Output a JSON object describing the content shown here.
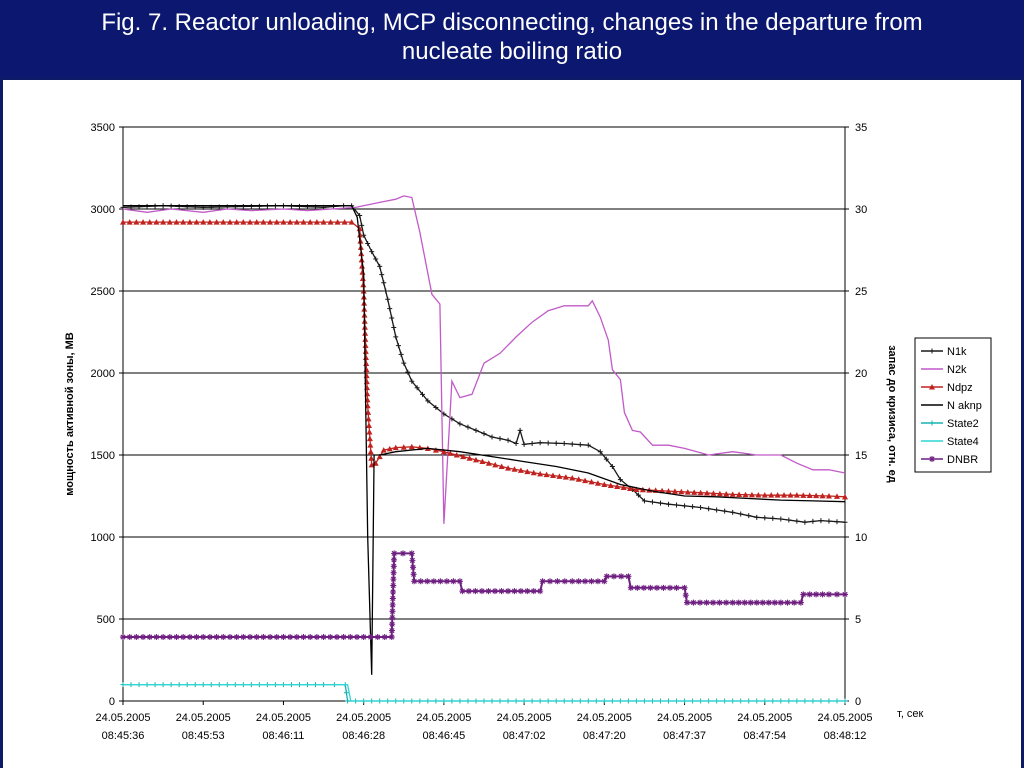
{
  "slide": {
    "title": "Fig. 7. Reactor unloading, MCP disconnecting, changes in the departure from nucleate boiling ratio"
  },
  "chart_data": {
    "type": "line",
    "title": "",
    "xlabel": "т, сек",
    "ylabel_left": "мощность активной зоны, МВ",
    "ylabel_right": "запас до кризиса, отн. ед",
    "x_ticks": [
      [
        "24.05.2005",
        "08:45:36"
      ],
      [
        "24.05.2005",
        "08:45:53"
      ],
      [
        "24.05.2005",
        "08:46:11"
      ],
      [
        "24.05.2005",
        "08:46:28"
      ],
      [
        "24.05.2005",
        "08:46:45"
      ],
      [
        "24.05.2005",
        "08:47:02"
      ],
      [
        "24.05.2005",
        "08:47:20"
      ],
      [
        "24.05.2005",
        "08:47:37"
      ],
      [
        "24.05.2005",
        "08:47:54"
      ],
      [
        "24.05.2005",
        "08:48:12"
      ]
    ],
    "ylim_left": [
      0,
      3500
    ],
    "yticks_left": [
      "0",
      "500",
      "1000",
      "1500",
      "2000",
      "2500",
      "3000",
      "3500"
    ],
    "ylim_right": [
      0,
      35
    ],
    "yticks_right": [
      "0",
      "5",
      "10",
      "15",
      "20",
      "25",
      "30",
      "35"
    ],
    "grid": "horizontal",
    "legend_position": "right",
    "series": [
      {
        "name": "N1k",
        "axis": "left",
        "color": "#1a1a1a",
        "marker": "plus",
        "points": [
          [
            0,
            3010
          ],
          [
            0.5,
            3020
          ],
          [
            1,
            3010
          ],
          [
            1.5,
            3015
          ],
          [
            2,
            3020
          ],
          [
            2.5,
            3010
          ],
          [
            2.75,
            3020
          ],
          [
            2.85,
            3020
          ],
          [
            2.95,
            2960
          ],
          [
            3.0,
            2840
          ],
          [
            3.1,
            2740
          ],
          [
            3.2,
            2650
          ],
          [
            3.3,
            2450
          ],
          [
            3.4,
            2220
          ],
          [
            3.5,
            2060
          ],
          [
            3.6,
            1950
          ],
          [
            3.8,
            1830
          ],
          [
            4.0,
            1750
          ],
          [
            4.2,
            1690
          ],
          [
            4.4,
            1650
          ],
          [
            4.6,
            1610
          ],
          [
            4.8,
            1590
          ],
          [
            4.9,
            1570
          ],
          [
            4.95,
            1650
          ],
          [
            5.0,
            1565
          ],
          [
            5.2,
            1575
          ],
          [
            5.5,
            1570
          ],
          [
            5.8,
            1560
          ],
          [
            5.95,
            1520
          ],
          [
            6.1,
            1430
          ],
          [
            6.2,
            1350
          ],
          [
            6.35,
            1290
          ],
          [
            6.5,
            1220
          ],
          [
            6.8,
            1200
          ],
          [
            7.2,
            1180
          ],
          [
            7.6,
            1150
          ],
          [
            7.9,
            1120
          ],
          [
            8.2,
            1110
          ],
          [
            8.5,
            1090
          ],
          [
            8.7,
            1100
          ],
          [
            9.0,
            1090
          ]
        ]
      },
      {
        "name": "N2k",
        "axis": "left",
        "color": "#c15ac8",
        "marker": "none",
        "points": [
          [
            0,
            3000
          ],
          [
            0.3,
            2980
          ],
          [
            0.6,
            3000
          ],
          [
            1,
            2980
          ],
          [
            1.3,
            3000
          ],
          [
            1.6,
            2990
          ],
          [
            2,
            3000
          ],
          [
            2.3,
            2990
          ],
          [
            2.6,
            3000
          ],
          [
            2.9,
            3010
          ],
          [
            3.2,
            3040
          ],
          [
            3.4,
            3060
          ],
          [
            3.5,
            3080
          ],
          [
            3.6,
            3070
          ],
          [
            3.7,
            2860
          ],
          [
            3.85,
            2480
          ],
          [
            3.95,
            2420
          ],
          [
            4.0,
            1080
          ],
          [
            4.1,
            1950
          ],
          [
            4.2,
            1850
          ],
          [
            4.35,
            1870
          ],
          [
            4.5,
            2060
          ],
          [
            4.7,
            2120
          ],
          [
            4.9,
            2220
          ],
          [
            5.1,
            2310
          ],
          [
            5.3,
            2380
          ],
          [
            5.5,
            2410
          ],
          [
            5.7,
            2410
          ],
          [
            5.8,
            2410
          ],
          [
            5.85,
            2440
          ],
          [
            5.95,
            2340
          ],
          [
            6.05,
            2200
          ],
          [
            6.1,
            2020
          ],
          [
            6.2,
            1960
          ],
          [
            6.25,
            1760
          ],
          [
            6.35,
            1650
          ],
          [
            6.45,
            1640
          ],
          [
            6.6,
            1560
          ],
          [
            6.8,
            1560
          ],
          [
            7.0,
            1540
          ],
          [
            7.3,
            1500
          ],
          [
            7.6,
            1520
          ],
          [
            7.9,
            1500
          ],
          [
            8.2,
            1500
          ],
          [
            8.4,
            1450
          ],
          [
            8.6,
            1410
          ],
          [
            8.8,
            1410
          ],
          [
            9.0,
            1390
          ]
        ]
      },
      {
        "name": "Ndpz",
        "axis": "left",
        "color": "#c0231f",
        "marker": "triangle",
        "points": [
          [
            0,
            2920
          ],
          [
            0.5,
            2920
          ],
          [
            1,
            2920
          ],
          [
            1.5,
            2920
          ],
          [
            2,
            2920
          ],
          [
            2.5,
            2920
          ],
          [
            2.85,
            2920
          ],
          [
            2.95,
            2880
          ],
          [
            3.0,
            2500
          ],
          [
            3.05,
            1800
          ],
          [
            3.1,
            1440
          ],
          [
            3.15,
            1450
          ],
          [
            3.25,
            1530
          ],
          [
            3.4,
            1545
          ],
          [
            3.6,
            1550
          ],
          [
            3.8,
            1540
          ],
          [
            4.0,
            1520
          ],
          [
            4.4,
            1470
          ],
          [
            4.8,
            1420
          ],
          [
            5.2,
            1385
          ],
          [
            5.6,
            1360
          ],
          [
            6.0,
            1320
          ],
          [
            6.4,
            1290
          ],
          [
            6.8,
            1280
          ],
          [
            7.2,
            1270
          ],
          [
            7.6,
            1260
          ],
          [
            8.0,
            1255
          ],
          [
            8.4,
            1255
          ],
          [
            8.8,
            1250
          ],
          [
            9.0,
            1245
          ]
        ]
      },
      {
        "name": "N aknp",
        "axis": "left",
        "color": "#000000",
        "marker": "none",
        "points": [
          [
            0,
            3020
          ],
          [
            1,
            3020
          ],
          [
            2,
            3020
          ],
          [
            2.85,
            3020
          ],
          [
            2.92,
            2950
          ],
          [
            3.0,
            2600
          ],
          [
            3.05,
            1000
          ],
          [
            3.1,
            160
          ],
          [
            3.13,
            1500
          ],
          [
            3.2,
            1500
          ],
          [
            3.4,
            1520
          ],
          [
            3.8,
            1540
          ],
          [
            4.2,
            1520
          ],
          [
            4.6,
            1490
          ],
          [
            5.0,
            1460
          ],
          [
            5.4,
            1430
          ],
          [
            5.8,
            1390
          ],
          [
            6.2,
            1320
          ],
          [
            6.6,
            1280
          ],
          [
            7.0,
            1250
          ],
          [
            7.4,
            1245
          ],
          [
            7.8,
            1235
          ],
          [
            8.2,
            1225
          ],
          [
            8.6,
            1220
          ],
          [
            9.0,
            1215
          ]
        ]
      },
      {
        "name": "State2",
        "axis": "right",
        "color": "#17b3b3",
        "marker": "plus",
        "points": [
          [
            0,
            1
          ],
          [
            0.5,
            1
          ],
          [
            1,
            1
          ],
          [
            1.5,
            1
          ],
          [
            2,
            1
          ],
          [
            2.5,
            1
          ],
          [
            2.77,
            1
          ],
          [
            2.8,
            0
          ],
          [
            3.5,
            0
          ],
          [
            4.5,
            0
          ],
          [
            5.5,
            0
          ],
          [
            6.5,
            0
          ],
          [
            7.5,
            0
          ],
          [
            8.5,
            0
          ],
          [
            9.0,
            0
          ]
        ]
      },
      {
        "name": "State4",
        "axis": "right",
        "color": "#2fd6d6",
        "marker": "none",
        "points": [
          [
            0,
            1
          ],
          [
            1,
            1
          ],
          [
            2,
            1
          ],
          [
            2.8,
            1
          ],
          [
            2.84,
            0
          ],
          [
            4,
            0
          ],
          [
            5,
            0
          ],
          [
            6,
            0
          ],
          [
            7,
            0
          ],
          [
            8,
            0
          ],
          [
            9,
            0
          ]
        ]
      },
      {
        "name": "DNBR",
        "axis": "right",
        "color": "#6e1f80",
        "marker": "star",
        "points": [
          [
            0,
            3.9
          ],
          [
            0.5,
            3.9
          ],
          [
            1,
            3.9
          ],
          [
            1.5,
            3.9
          ],
          [
            2,
            3.9
          ],
          [
            2.5,
            3.9
          ],
          [
            3.0,
            3.9
          ],
          [
            3.35,
            3.9
          ],
          [
            3.38,
            9.0
          ],
          [
            3.6,
            9.0
          ],
          [
            3.63,
            7.3
          ],
          [
            4.2,
            7.3
          ],
          [
            4.23,
            6.7
          ],
          [
            4.8,
            6.7
          ],
          [
            5.2,
            6.7
          ],
          [
            5.23,
            7.3
          ],
          [
            5.6,
            7.3
          ],
          [
            6.0,
            7.3
          ],
          [
            6.03,
            7.6
          ],
          [
            6.3,
            7.6
          ],
          [
            6.33,
            6.9
          ],
          [
            6.9,
            6.9
          ],
          [
            7.0,
            6.9
          ],
          [
            7.03,
            6.0
          ],
          [
            7.6,
            6.0
          ],
          [
            8.2,
            6.0
          ],
          [
            8.45,
            6.0
          ],
          [
            8.48,
            6.5
          ],
          [
            8.8,
            6.5
          ],
          [
            9.0,
            6.5
          ]
        ]
      }
    ]
  }
}
